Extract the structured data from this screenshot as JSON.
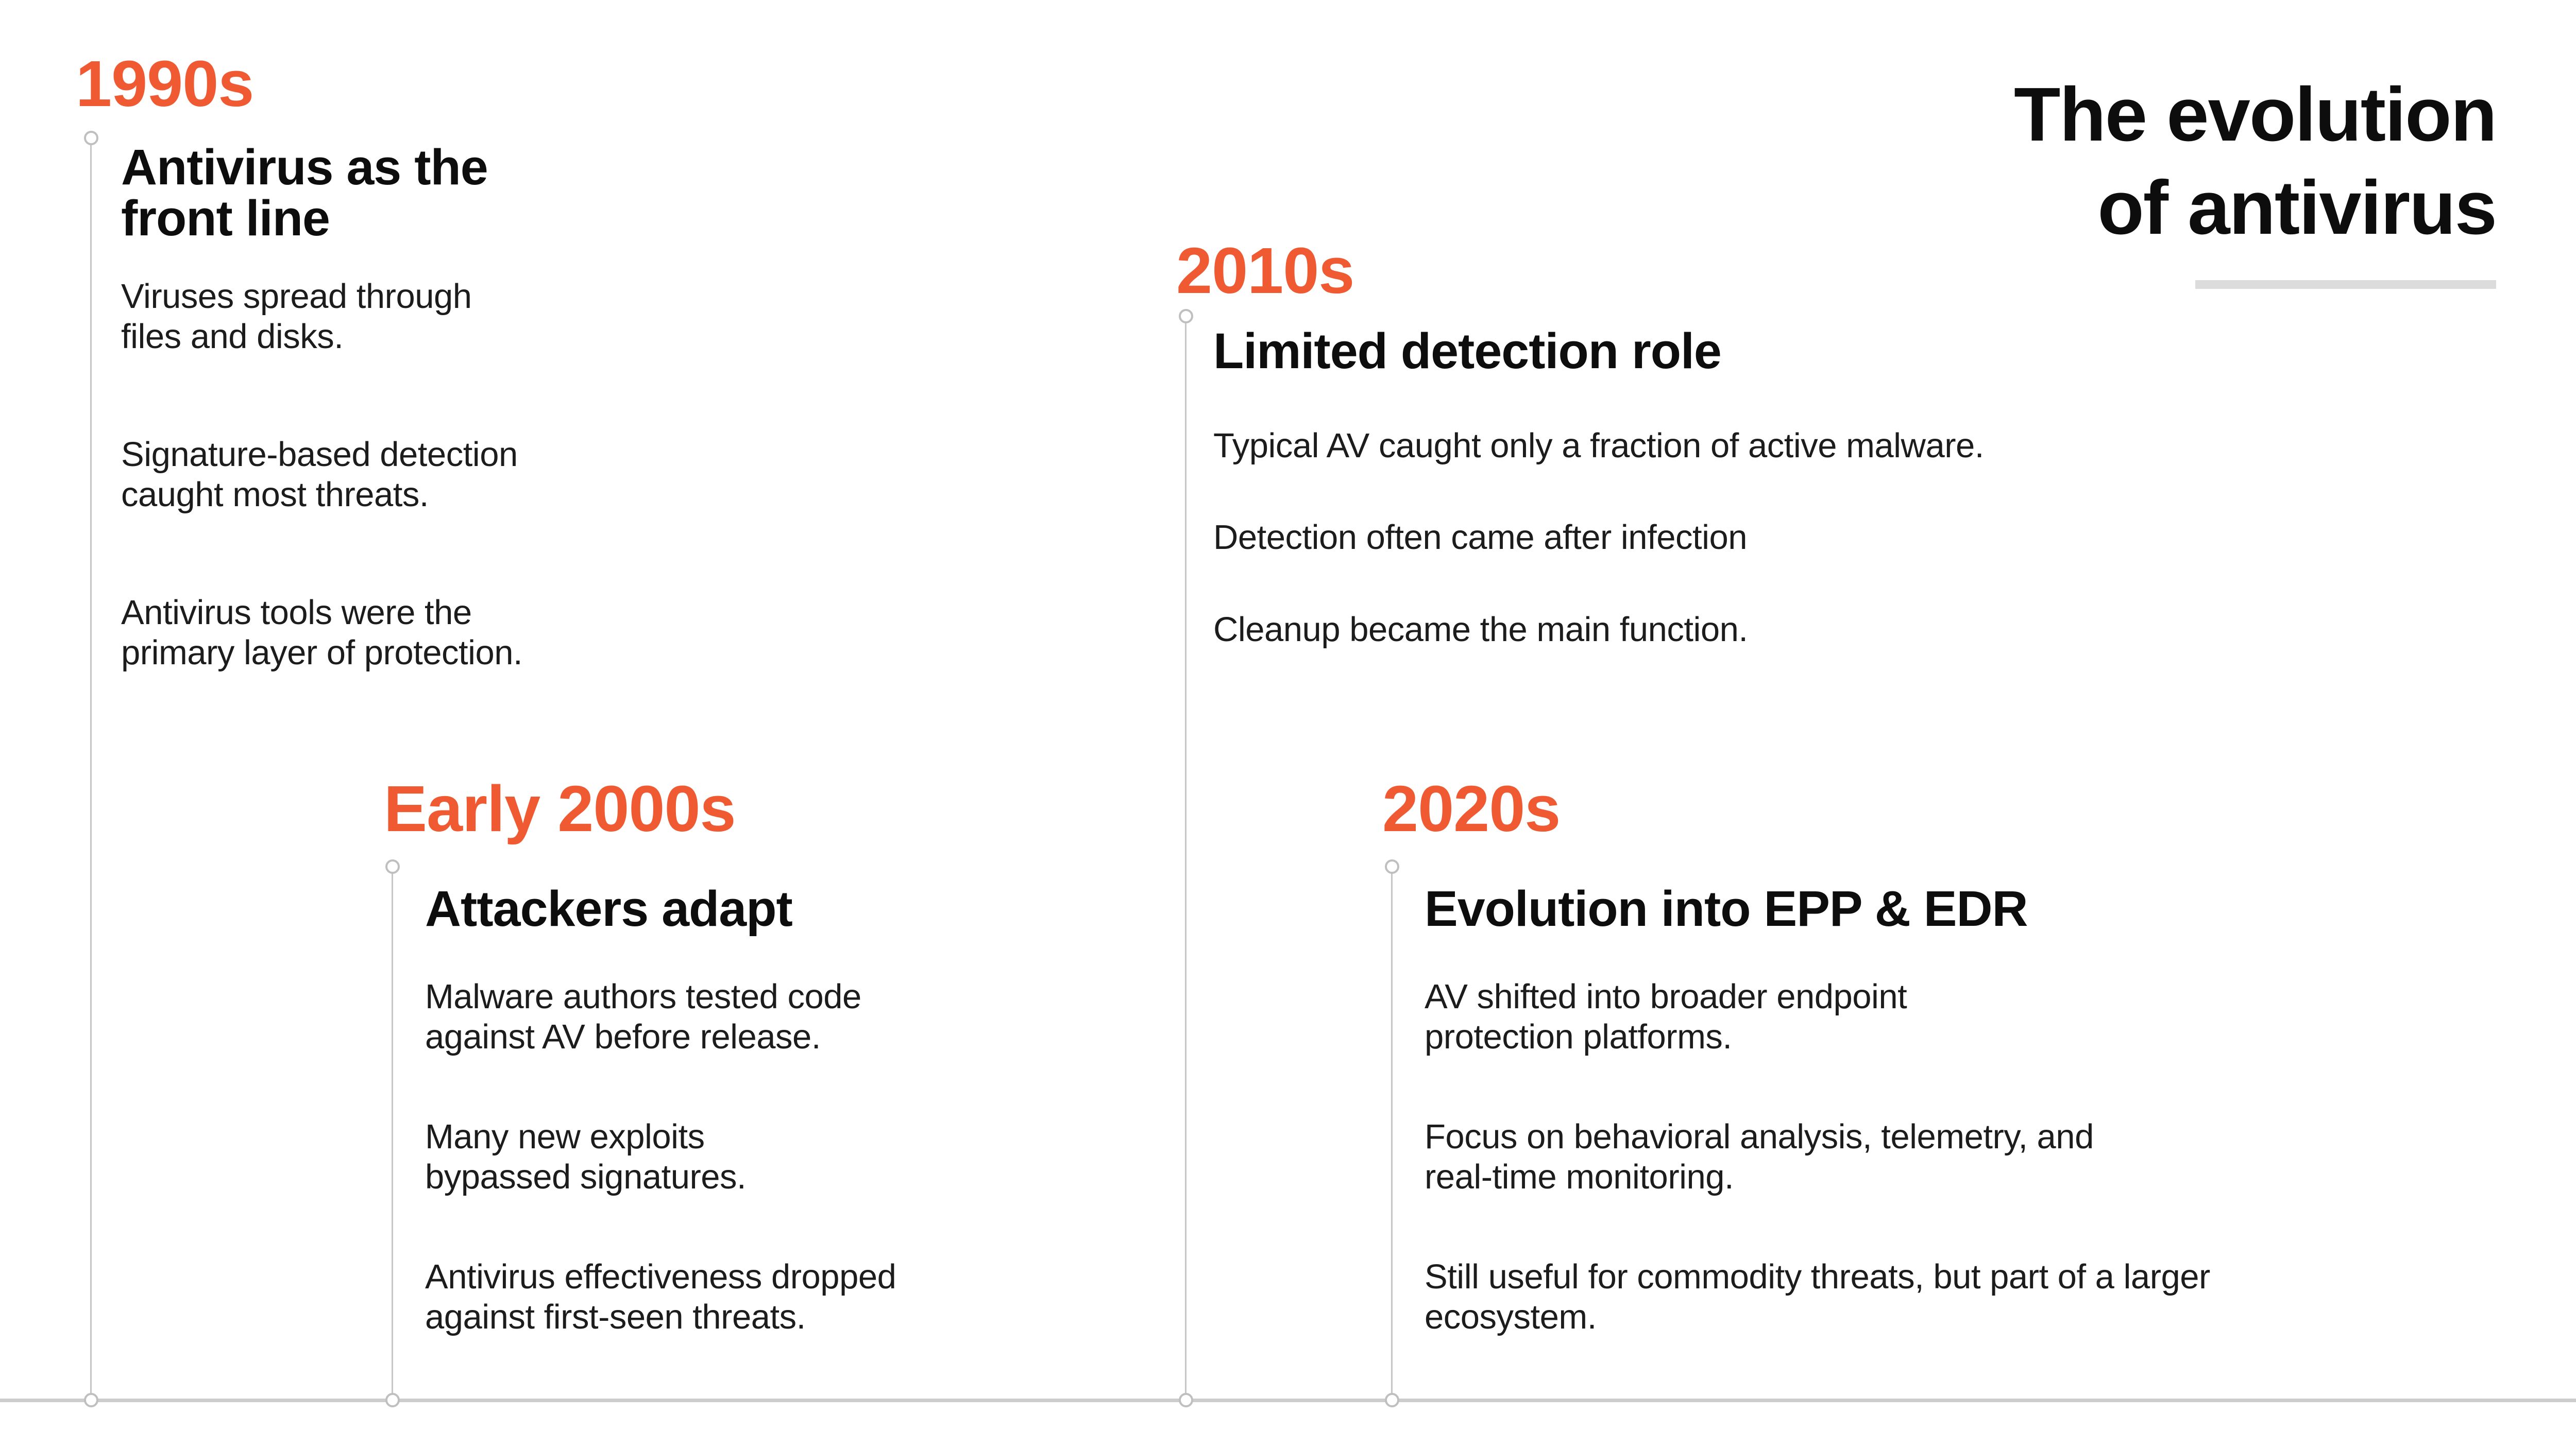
{
  "title": {
    "text": "The evolution\nof antivirus"
  },
  "colors": {
    "accent": "#EF5A33",
    "heading_black": "#0d0d0d",
    "body_black": "#1c1c1c",
    "line_gray": "#c6c6c6",
    "node_gray": "#bfbfbf",
    "axis_gray": "#cdcdcd",
    "underline_gray": "#dcdcdc"
  },
  "timeline": {
    "sections": [
      {
        "id": "1990s",
        "heading": "1990s",
        "subheading": "Antivirus as the\nfront line",
        "paragraphs": [
          "Viruses spread through\nfiles and disks.",
          "Signature-based detection\ncaught most threats.",
          "Antivirus tools were the\nprimary layer of protection."
        ]
      },
      {
        "id": "early-2000s",
        "heading": "Early 2000s",
        "subheading": "Attackers adapt",
        "paragraphs": [
          "Malware authors tested code\nagainst AV before release.",
          "Many new exploits\nbypassed signatures.",
          "Antivirus effectiveness dropped\nagainst first-seen threats."
        ]
      },
      {
        "id": "2010s",
        "heading": "2010s",
        "subheading": "Limited detection role",
        "paragraphs": [
          "Typical AV caught only a fraction of active malware.",
          "Detection often came after infection",
          "Cleanup became the main function."
        ]
      },
      {
        "id": "2020s",
        "heading": "2020s",
        "subheading": "Evolution into EPP & EDR",
        "paragraphs": [
          "AV shifted into broader endpoint\nprotection platforms.",
          "Focus on behavioral analysis, telemetry, and\nreal-time monitoring.",
          "Still useful for commodity threats, but part of a larger\necosystem."
        ]
      }
    ]
  }
}
